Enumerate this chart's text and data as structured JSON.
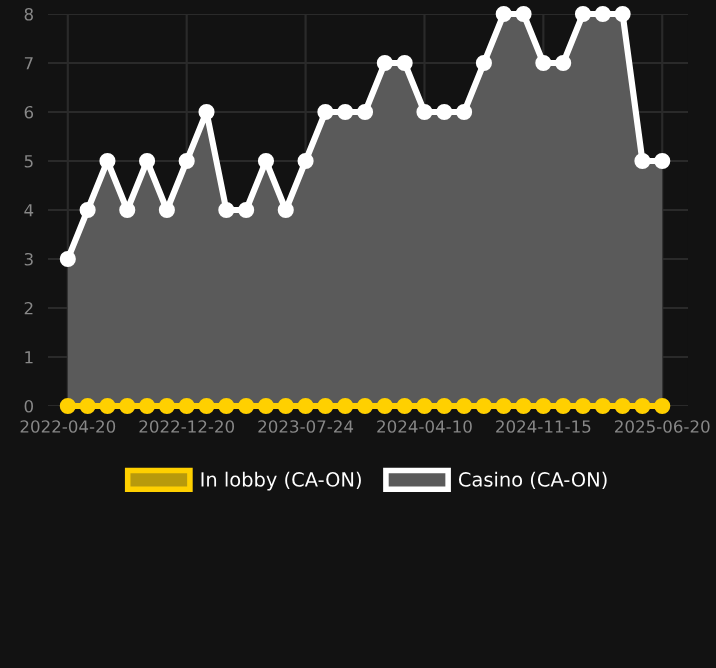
{
  "chart_data": {
    "type": "area",
    "categories": [
      "2022-04-20",
      null,
      null,
      null,
      null,
      null,
      "2022-12-20",
      null,
      null,
      null,
      null,
      null,
      "2023-07-24",
      null,
      null,
      null,
      null,
      null,
      "2024-04-10",
      null,
      null,
      null,
      null,
      null,
      "2024-11-15",
      null,
      null,
      null,
      null,
      null,
      "2025-06-20"
    ],
    "series": [
      {
        "name": "In lobby (CA-ON)",
        "type": "line",
        "color": "#ffd000",
        "values": [
          0,
          0,
          0,
          0,
          0,
          0,
          0,
          0,
          0,
          0,
          0,
          0,
          0,
          0,
          0,
          0,
          0,
          0,
          0,
          0,
          0,
          0,
          0,
          0,
          0,
          0,
          0,
          0,
          0,
          0,
          0
        ]
      },
      {
        "name": "Casino (CA-ON)",
        "color": "#ffffff",
        "values": [
          3,
          4,
          5,
          4,
          5,
          4,
          5,
          6,
          4,
          4,
          5,
          4,
          5,
          6,
          6,
          6,
          7,
          7,
          6,
          6,
          6,
          7,
          8,
          8,
          7,
          7,
          8,
          8,
          8,
          5,
          5
        ]
      }
    ],
    "ylim": [
      0,
      8
    ],
    "yticks": [
      0,
      1,
      2,
      3,
      4,
      5,
      6,
      7,
      8
    ],
    "grid": true,
    "legend": "bottom",
    "marker": "circle",
    "line_style": "solid"
  }
}
